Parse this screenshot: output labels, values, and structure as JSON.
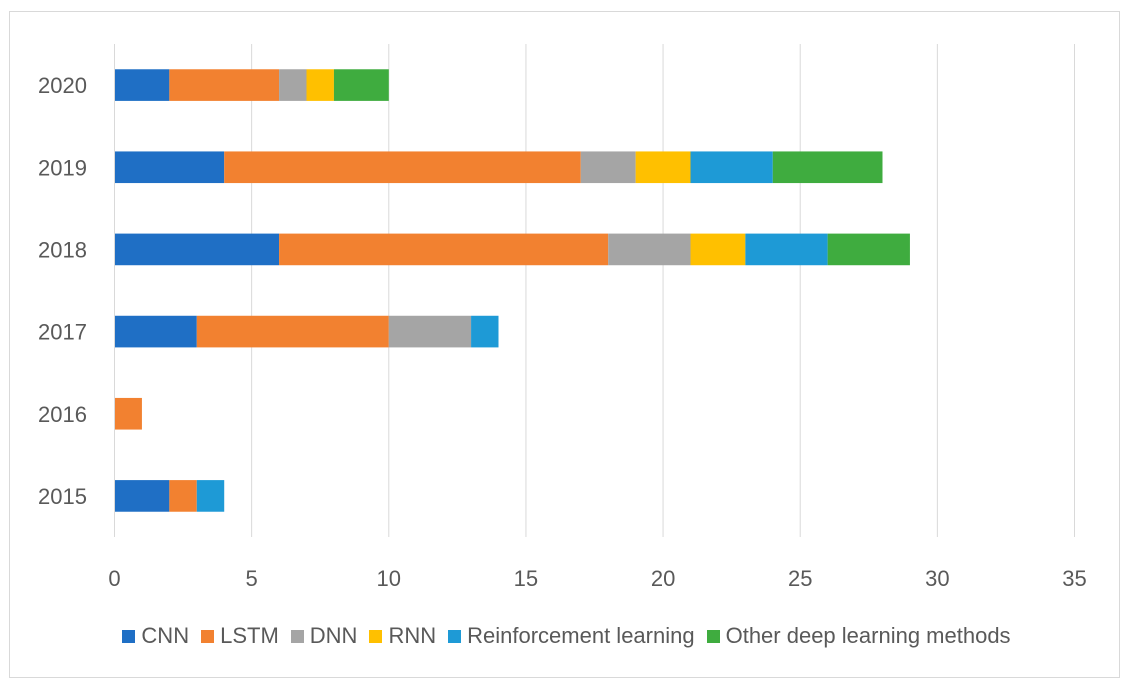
{
  "chart_data": {
    "type": "bar",
    "orientation": "horizontal",
    "stacked": true,
    "categories": [
      "2015",
      "2016",
      "2017",
      "2018",
      "2019",
      "2020"
    ],
    "series": [
      {
        "name": "CNN",
        "color": "#1f6fc5",
        "values": [
          2,
          0,
          3,
          6,
          4,
          2
        ]
      },
      {
        "name": "LSTM",
        "color": "#f28130",
        "values": [
          1,
          1,
          7,
          12,
          13,
          4
        ]
      },
      {
        "name": "DNN",
        "color": "#a5a5a5",
        "values": [
          0,
          0,
          3,
          3,
          2,
          1
        ]
      },
      {
        "name": "RNN",
        "color": "#ffc000",
        "values": [
          0,
          0,
          0,
          2,
          2,
          1
        ]
      },
      {
        "name": "Reinforcement learning",
        "color": "#1e9ad6",
        "values": [
          1,
          0,
          1,
          3,
          3,
          0
        ]
      },
      {
        "name": "Other deep learning methods",
        "color": "#3fac3f",
        "values": [
          0,
          0,
          0,
          3,
          4,
          2
        ]
      }
    ],
    "xlim": [
      0,
      35
    ],
    "xticks": [
      "0",
      "5",
      "10",
      "15",
      "20",
      "25",
      "30",
      "35"
    ],
    "grid": true,
    "legend_position": "bottom",
    "title": "",
    "xlabel": "",
    "ylabel": ""
  }
}
